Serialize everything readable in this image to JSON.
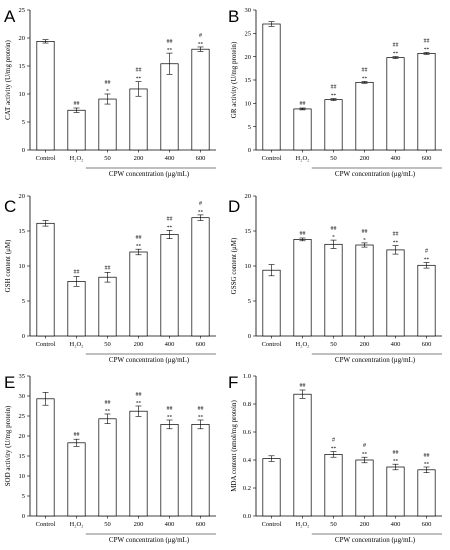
{
  "figure": {
    "panels": [
      {
        "letter": "A",
        "xlabel": "CPW concentration (μg/mL)",
        "ylabel": "CAT activity (U/mg protein)"
      },
      {
        "letter": "B",
        "xlabel": "CPW concentration (μg/mL)",
        "ylabel": "GR activity (U/mg protein)"
      },
      {
        "letter": "C",
        "xlabel": "CPW concentration (μg/mL)",
        "ylabel": "GSH content (μM)"
      },
      {
        "letter": "D",
        "xlabel": "CPW concentration (μg/mL)",
        "ylabel": "GSSG content (μM)"
      },
      {
        "letter": "E",
        "xlabel": "CPW concentration (μg/mL)",
        "ylabel": "SOD activity (U/mg protein)"
      },
      {
        "letter": "F",
        "xlabel": "CPW concentration (μg/mL)",
        "ylabel": "MDA content (nmol/mg protein)"
      }
    ]
  },
  "chart_data": [
    {
      "type": "bar",
      "panel": "A",
      "categories": [
        "Control",
        "H₂O₂",
        "50",
        "200",
        "400",
        "600"
      ],
      "values": [
        19.4,
        7.1,
        9.1,
        10.9,
        15.4,
        18.0
      ],
      "errors": [
        0.3,
        0.4,
        0.9,
        1.3,
        1.9,
        0.4
      ],
      "annotations_hash": [
        "",
        "##",
        "##",
        "##",
        "##",
        "#"
      ],
      "annotations_star": [
        "",
        "",
        "*",
        "**",
        "**",
        "**"
      ],
      "xlabel": "CPW concentration (μg/mL)",
      "ylabel": "CAT activity (U/mg protein)",
      "ylim": [
        0,
        25
      ],
      "yticks": [
        0,
        5,
        10,
        15,
        20,
        25
      ]
    },
    {
      "type": "bar",
      "panel": "B",
      "categories": [
        "Control",
        "H₂O₂",
        "50",
        "200",
        "400",
        "600"
      ],
      "values": [
        27.0,
        8.8,
        10.8,
        14.5,
        19.8,
        20.7
      ],
      "errors": [
        0.5,
        0.2,
        0.2,
        0.2,
        0.2,
        0.2
      ],
      "annotations_hash": [
        "",
        "##",
        "##",
        "##",
        "##",
        "##"
      ],
      "annotations_star": [
        "",
        "",
        "**",
        "**",
        "**",
        "**"
      ],
      "xlabel": "CPW concentration (μg/mL)",
      "ylabel": "GR activity (U/mg protein)",
      "ylim": [
        0,
        30
      ],
      "yticks": [
        0,
        5,
        10,
        15,
        20,
        25,
        30
      ]
    },
    {
      "type": "bar",
      "panel": "C",
      "categories": [
        "Control",
        "H₂O₂",
        "50",
        "200",
        "400",
        "600"
      ],
      "values": [
        16.1,
        7.8,
        8.4,
        12.0,
        14.5,
        16.9
      ],
      "errors": [
        0.4,
        0.7,
        0.7,
        0.4,
        0.6,
        0.4
      ],
      "annotations_hash": [
        "",
        "##",
        "##",
        "##",
        "##",
        "#"
      ],
      "annotations_star": [
        "",
        "",
        "",
        "**",
        "**",
        "**"
      ],
      "xlabel": "CPW concentration (μg/mL)",
      "ylabel": "GSH content (μM)",
      "ylim": [
        0,
        20
      ],
      "yticks": [
        0,
        5,
        10,
        15,
        20
      ]
    },
    {
      "type": "bar",
      "panel": "D",
      "categories": [
        "Control",
        "H₂O₂",
        "50",
        "200",
        "400",
        "600"
      ],
      "values": [
        9.4,
        13.8,
        13.1,
        13.0,
        12.3,
        10.1
      ],
      "errors": [
        0.8,
        0.2,
        0.6,
        0.3,
        0.6,
        0.4
      ],
      "annotations_hash": [
        "",
        "##",
        "##",
        "##",
        "##",
        "#"
      ],
      "annotations_star": [
        "",
        "",
        "*",
        "*",
        "**",
        "**"
      ],
      "xlabel": "CPW concentration (μg/mL)",
      "ylabel": "GSSG content (μM)",
      "ylim": [
        0,
        20
      ],
      "yticks": [
        0,
        5,
        10,
        15,
        20
      ]
    },
    {
      "type": "bar",
      "panel": "E",
      "categories": [
        "Control",
        "H₂O₂",
        "50",
        "200",
        "400",
        "600"
      ],
      "values": [
        29.3,
        18.3,
        24.3,
        26.2,
        22.9,
        22.9
      ],
      "errors": [
        1.6,
        0.9,
        1.2,
        1.3,
        1.1,
        1.1
      ],
      "annotations_hash": [
        "",
        "##",
        "##",
        "##",
        "##",
        "##"
      ],
      "annotations_star": [
        "",
        "",
        "**",
        "**",
        "**",
        "**"
      ],
      "xlabel": "CPW concentration (μg/mL)",
      "ylabel": "SOD activity (U/mg protein)",
      "ylim": [
        0,
        35
      ],
      "yticks": [
        0,
        5,
        10,
        15,
        20,
        25,
        30,
        35
      ]
    },
    {
      "type": "bar",
      "panel": "F",
      "categories": [
        "Control",
        "H₂O₂",
        "50",
        "200",
        "400",
        "600"
      ],
      "values": [
        0.41,
        0.87,
        0.44,
        0.4,
        0.35,
        0.33
      ],
      "errors": [
        0.02,
        0.03,
        0.02,
        0.02,
        0.02,
        0.02
      ],
      "annotations_hash": [
        "",
        "##",
        "#",
        "#",
        "##",
        "##"
      ],
      "annotations_star": [
        "",
        "",
        "**",
        "**",
        "**",
        "**"
      ],
      "xlabel": "CPW concentration (μg/mL)",
      "ylabel": "MDA content (nmol/mg protein)",
      "ylim": [
        0,
        1.0
      ],
      "yticks": [
        0.0,
        0.2,
        0.4,
        0.6,
        0.8,
        1.0
      ],
      "ytick_decimals": 1
    }
  ]
}
